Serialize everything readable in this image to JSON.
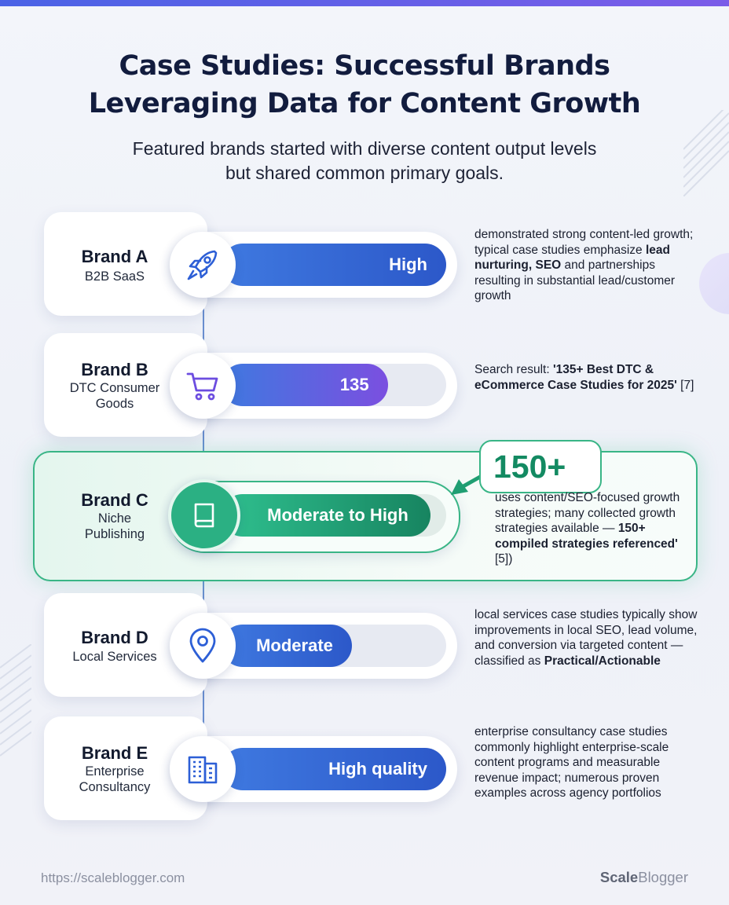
{
  "header": {
    "title_line1": "Case Studies: Successful Brands",
    "title_line2": "Leveraging Data for Content Growth",
    "subtitle_line1": "Featured brands started with diverse content output levels",
    "subtitle_line2": "but shared common primary goals."
  },
  "colors": {
    "accent_blue": "#2c58c9",
    "accent_purple": "#7b4fe0",
    "accent_green": "#1f9e72",
    "title_navy": "#121c3e"
  },
  "brands": [
    {
      "name": "Brand A",
      "category_line1": "B2B SaaS",
      "category_line2": "",
      "icon": "rocket-icon",
      "bar_label": "High",
      "bar_fill": 1.0,
      "desc_parts": [
        "demonstrated strong content-led growth; typical case studies emphasize ",
        "lead nurturing, SEO",
        " and partnerships resulting in substantial lead/customer growth"
      ]
    },
    {
      "name": "Brand B",
      "category_line1": "DTC Consumer",
      "category_line2": "Goods",
      "icon": "shopping-cart-icon",
      "bar_label": "135",
      "bar_fill": 0.74,
      "desc_parts": [
        "Search result: ",
        "'135+ Best DTC & eCommerce Case Studies for 2025'",
        " [7]"
      ]
    },
    {
      "name": "Brand C",
      "category_line1": "Niche",
      "category_line2": "Publishing",
      "icon": "book-icon",
      "bar_label": "Moderate to High",
      "bar_fill": 0.92,
      "badge": "150+",
      "desc_parts": [
        "uses content/SEO-focused growth strategies; many collected growth strategies available — ",
        "150+ compiled strategies referenced'",
        " [5])"
      ]
    },
    {
      "name": "Brand D",
      "category_line1": "Local Services",
      "category_line2": "",
      "icon": "map-pin-icon",
      "bar_label": "Moderate",
      "bar_fill": 0.58,
      "desc_parts": [
        "local services case studies typically show improvements in local SEO, lead volume, and conversion via targeted content — classified as ",
        "Practical/Actionable",
        ""
      ]
    },
    {
      "name": "Brand E",
      "category_line1": "Enterprise",
      "category_line2": "Consultancy",
      "icon": "building-icon",
      "bar_label": "High quality",
      "bar_fill": 1.0,
      "desc_parts": [
        "enterprise consultancy case studies commonly highlight enterprise-scale content programs and measurable revenue impact; numerous proven examples across agency portfolios",
        "",
        ""
      ]
    }
  ],
  "footer": {
    "url": "https://scaleblogger.com",
    "brand_bold": "Scale",
    "brand_rest": "Blogger"
  }
}
